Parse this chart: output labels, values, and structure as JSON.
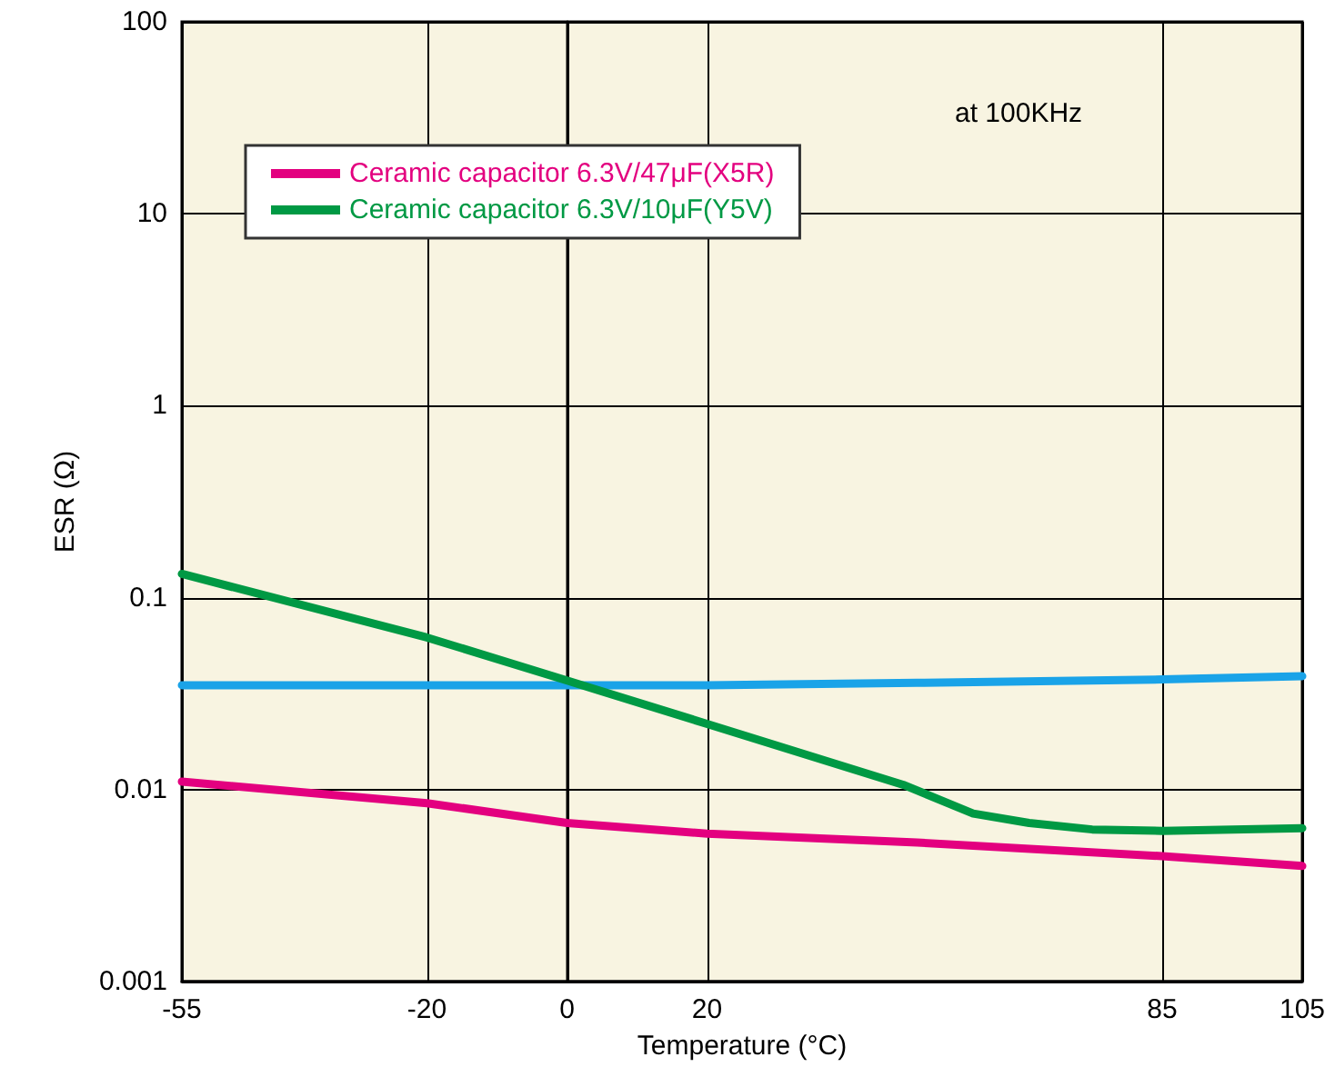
{
  "chart_data": {
    "type": "line",
    "xlabel": "Temperature (°C)",
    "ylabel": "ESR (Ω)",
    "annotations": [
      "at 100KHz"
    ],
    "xlim": [
      -55,
      105
    ],
    "xticks": [
      -55,
      -20,
      0,
      20,
      85,
      105
    ],
    "ylim": [
      0.001,
      100
    ],
    "yticks": [
      0.001,
      0.01,
      0.1,
      1,
      10,
      100
    ],
    "log": "y",
    "grid": true,
    "legend": "top left",
    "marker": "none",
    "line_style": "solid",
    "series": [
      {
        "color": "#1aa3e8",
        "x": [
          -55,
          -20,
          0,
          20,
          50,
          85,
          105
        ],
        "values": [
          0.035,
          0.035,
          0.035,
          0.035,
          0.036,
          0.0375,
          0.039
        ]
      },
      {
        "name": "Ceramic capacitor 6.3V/47μF(X5R)",
        "color": "#e3007f",
        "x": [
          -55,
          -20,
          0,
          20,
          50,
          85,
          105
        ],
        "values": [
          0.011,
          0.0085,
          0.0067,
          0.0059,
          0.0053,
          0.0045,
          0.004
        ]
      },
      {
        "name": "Ceramic capacitor 6.3V/10μF(Y5V)",
        "color": "#009944",
        "x": [
          -55,
          -20,
          0,
          20,
          48,
          58,
          66,
          75,
          85,
          105
        ],
        "values": [
          0.133,
          0.062,
          0.037,
          0.022,
          0.0106,
          0.0075,
          0.0067,
          0.0062,
          0.0061,
          0.0063
        ]
      }
    ]
  }
}
